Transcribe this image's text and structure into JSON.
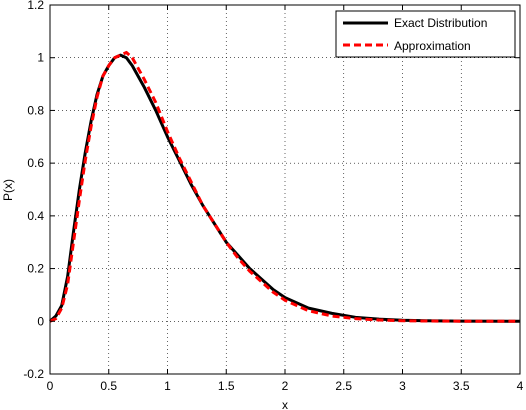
{
  "chart_data": {
    "type": "line",
    "xlabel": "x",
    "ylabel": "P(x)",
    "xlim": [
      0,
      4
    ],
    "ylim": [
      -0.2,
      1.2
    ],
    "xticks": [
      0,
      0.5,
      1,
      1.5,
      2,
      2.5,
      3,
      3.5,
      4
    ],
    "yticks": [
      -0.2,
      0,
      0.2,
      0.4,
      0.6,
      0.8,
      1,
      1.2
    ],
    "xtick_labels": [
      "0",
      "0.5",
      "1",
      "1.5",
      "2",
      "2.5",
      "3",
      "3.5",
      "4"
    ],
    "ytick_labels": [
      "-0.2",
      "0",
      "0.2",
      "0.4",
      "0.6",
      "0.8",
      "1",
      "1.2"
    ],
    "grid": true,
    "legend_position": "top-right",
    "series": [
      {
        "name": "Exact Distribution",
        "color": "#000000",
        "style": "solid",
        "x": [
          0,
          0.05,
          0.1,
          0.15,
          0.2,
          0.25,
          0.3,
          0.35,
          0.4,
          0.45,
          0.5,
          0.55,
          0.6,
          0.65,
          0.7,
          0.8,
          0.9,
          1.0,
          1.1,
          1.2,
          1.3,
          1.4,
          1.5,
          1.6,
          1.7,
          1.8,
          1.9,
          2.0,
          2.2,
          2.4,
          2.6,
          2.8,
          3.0,
          3.2,
          3.5,
          4.0
        ],
        "y": [
          0,
          0.02,
          0.06,
          0.17,
          0.34,
          0.5,
          0.64,
          0.76,
          0.86,
          0.93,
          0.97,
          1.0,
          1.01,
          1.0,
          0.97,
          0.89,
          0.8,
          0.7,
          0.61,
          0.52,
          0.44,
          0.37,
          0.3,
          0.25,
          0.2,
          0.16,
          0.12,
          0.09,
          0.05,
          0.03,
          0.015,
          0.008,
          0.004,
          0.002,
          0.0005,
          0
        ]
      },
      {
        "name": "Approximation",
        "color": "#ff0000",
        "style": "dashed",
        "x": [
          0,
          0.05,
          0.1,
          0.15,
          0.2,
          0.25,
          0.3,
          0.35,
          0.4,
          0.45,
          0.5,
          0.55,
          0.6,
          0.65,
          0.7,
          0.8,
          0.9,
          1.0,
          1.1,
          1.2,
          1.3,
          1.4,
          1.5,
          1.6,
          1.7,
          1.8,
          1.9,
          2.0,
          2.2,
          2.4,
          2.6,
          2.8,
          3.0,
          3.2,
          3.5,
          4.0
        ],
        "y": [
          0,
          0.01,
          0.05,
          0.14,
          0.3,
          0.46,
          0.61,
          0.74,
          0.85,
          0.93,
          0.97,
          1.0,
          1.01,
          1.02,
          1.0,
          0.92,
          0.83,
          0.72,
          0.62,
          0.53,
          0.44,
          0.37,
          0.3,
          0.24,
          0.19,
          0.15,
          0.11,
          0.08,
          0.04,
          0.02,
          0.01,
          0.005,
          0.002,
          0.001,
          0.0003,
          0
        ]
      }
    ]
  }
}
